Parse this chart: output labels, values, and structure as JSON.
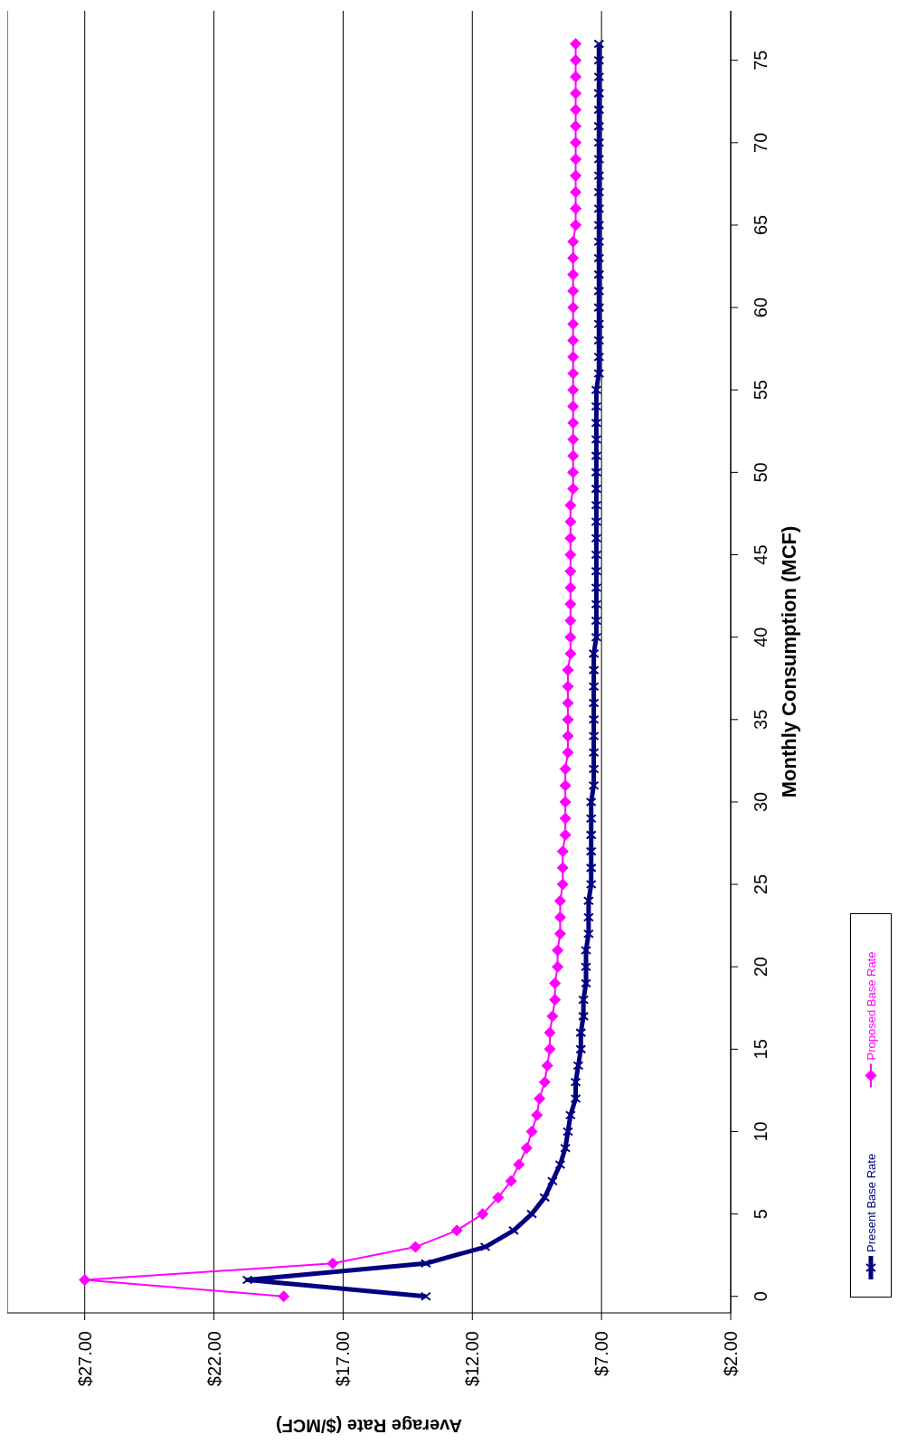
{
  "chart_data": {
    "type": "line",
    "xlabel": "Average Rate ($/MCF)",
    "ylabel": "Monthly Consumption (MCF)",
    "xlim": [
      30,
      2
    ],
    "xticks": [
      {
        "value": 27,
        "label": "$27.00"
      },
      {
        "value": 22,
        "label": "$22.00"
      },
      {
        "value": 17,
        "label": "$17.00"
      },
      {
        "value": 12,
        "label": "$12.00"
      },
      {
        "value": 7,
        "label": "$7.00"
      },
      {
        "value": 2,
        "label": "$2.00"
      }
    ],
    "ylim": [
      -1,
      78
    ],
    "yticks": [
      0,
      5,
      10,
      15,
      20,
      25,
      30,
      35,
      40,
      45,
      50,
      55,
      60,
      65,
      70,
      75
    ],
    "grid": "x",
    "legend": "right",
    "line_style": "solid",
    "series": [
      {
        "name": "Present Base Rate",
        "color": "#000080",
        "marker": "cross",
        "x": [
          13.8,
          20.7,
          13.8,
          11.5,
          10.4,
          9.7,
          9.2,
          8.9,
          8.6,
          8.4,
          8.3,
          8.2,
          8.0,
          8.0,
          7.9,
          7.8,
          7.8,
          7.7,
          7.7,
          7.6,
          7.6,
          7.6,
          7.5,
          7.5,
          7.5,
          7.4,
          7.4,
          7.4,
          7.4,
          7.4,
          7.4,
          7.3,
          7.3,
          7.3,
          7.3,
          7.3,
          7.3,
          7.3,
          7.3,
          7.3,
          7.2,
          7.2,
          7.2,
          7.2,
          7.2,
          7.2,
          7.2,
          7.2,
          7.2,
          7.2,
          7.2,
          7.2,
          7.2,
          7.2,
          7.2,
          7.2,
          7.1,
          7.1,
          7.1,
          7.1,
          7.1,
          7.1,
          7.1,
          7.1,
          7.1,
          7.1,
          7.1,
          7.1,
          7.1,
          7.1,
          7.1,
          7.1,
          7.1,
          7.1,
          7.1,
          7.1,
          7.1
        ],
        "values": [
          0,
          1,
          2,
          3,
          4,
          5,
          6,
          7,
          8,
          9,
          10,
          11,
          12,
          13,
          14,
          15,
          16,
          17,
          18,
          19,
          20,
          21,
          22,
          23,
          24,
          25,
          26,
          27,
          28,
          29,
          30,
          31,
          32,
          33,
          34,
          35,
          36,
          37,
          38,
          39,
          40,
          41,
          42,
          43,
          44,
          45,
          46,
          47,
          48,
          49,
          50,
          51,
          52,
          53,
          54,
          55,
          56,
          57,
          58,
          59,
          60,
          61,
          62,
          63,
          64,
          65,
          66,
          67,
          68,
          69,
          70,
          71,
          72,
          73,
          74,
          75,
          76
        ]
      },
      {
        "name": "Proposed Base Rate",
        "color": "#ff00ff",
        "marker": "diamond",
        "x": [
          19.3,
          27.0,
          17.4,
          14.2,
          12.6,
          11.6,
          11.0,
          10.5,
          10.2,
          9.9,
          9.7,
          9.5,
          9.4,
          9.2,
          9.1,
          9.0,
          9.0,
          8.9,
          8.8,
          8.8,
          8.7,
          8.7,
          8.6,
          8.6,
          8.6,
          8.5,
          8.5,
          8.5,
          8.4,
          8.4,
          8.4,
          8.4,
          8.4,
          8.3,
          8.3,
          8.3,
          8.3,
          8.3,
          8.3,
          8.2,
          8.2,
          8.2,
          8.2,
          8.2,
          8.2,
          8.2,
          8.2,
          8.2,
          8.2,
          8.1,
          8.1,
          8.1,
          8.1,
          8.1,
          8.1,
          8.1,
          8.1,
          8.1,
          8.1,
          8.1,
          8.1,
          8.1,
          8.1,
          8.1,
          8.1,
          8.0,
          8.0,
          8.0,
          8.0,
          8.0,
          8.0,
          8.0,
          8.0,
          8.0,
          8.0,
          8.0,
          8.0
        ],
        "values": [
          0,
          1,
          2,
          3,
          4,
          5,
          6,
          7,
          8,
          9,
          10,
          11,
          12,
          13,
          14,
          15,
          16,
          17,
          18,
          19,
          20,
          21,
          22,
          23,
          24,
          25,
          26,
          27,
          28,
          29,
          30,
          31,
          32,
          33,
          34,
          35,
          36,
          37,
          38,
          39,
          40,
          41,
          42,
          43,
          44,
          45,
          46,
          47,
          48,
          49,
          50,
          51,
          52,
          53,
          54,
          55,
          56,
          57,
          58,
          59,
          60,
          61,
          62,
          63,
          64,
          65,
          66,
          67,
          68,
          69,
          70,
          71,
          72,
          73,
          74,
          75,
          76
        ]
      }
    ]
  }
}
